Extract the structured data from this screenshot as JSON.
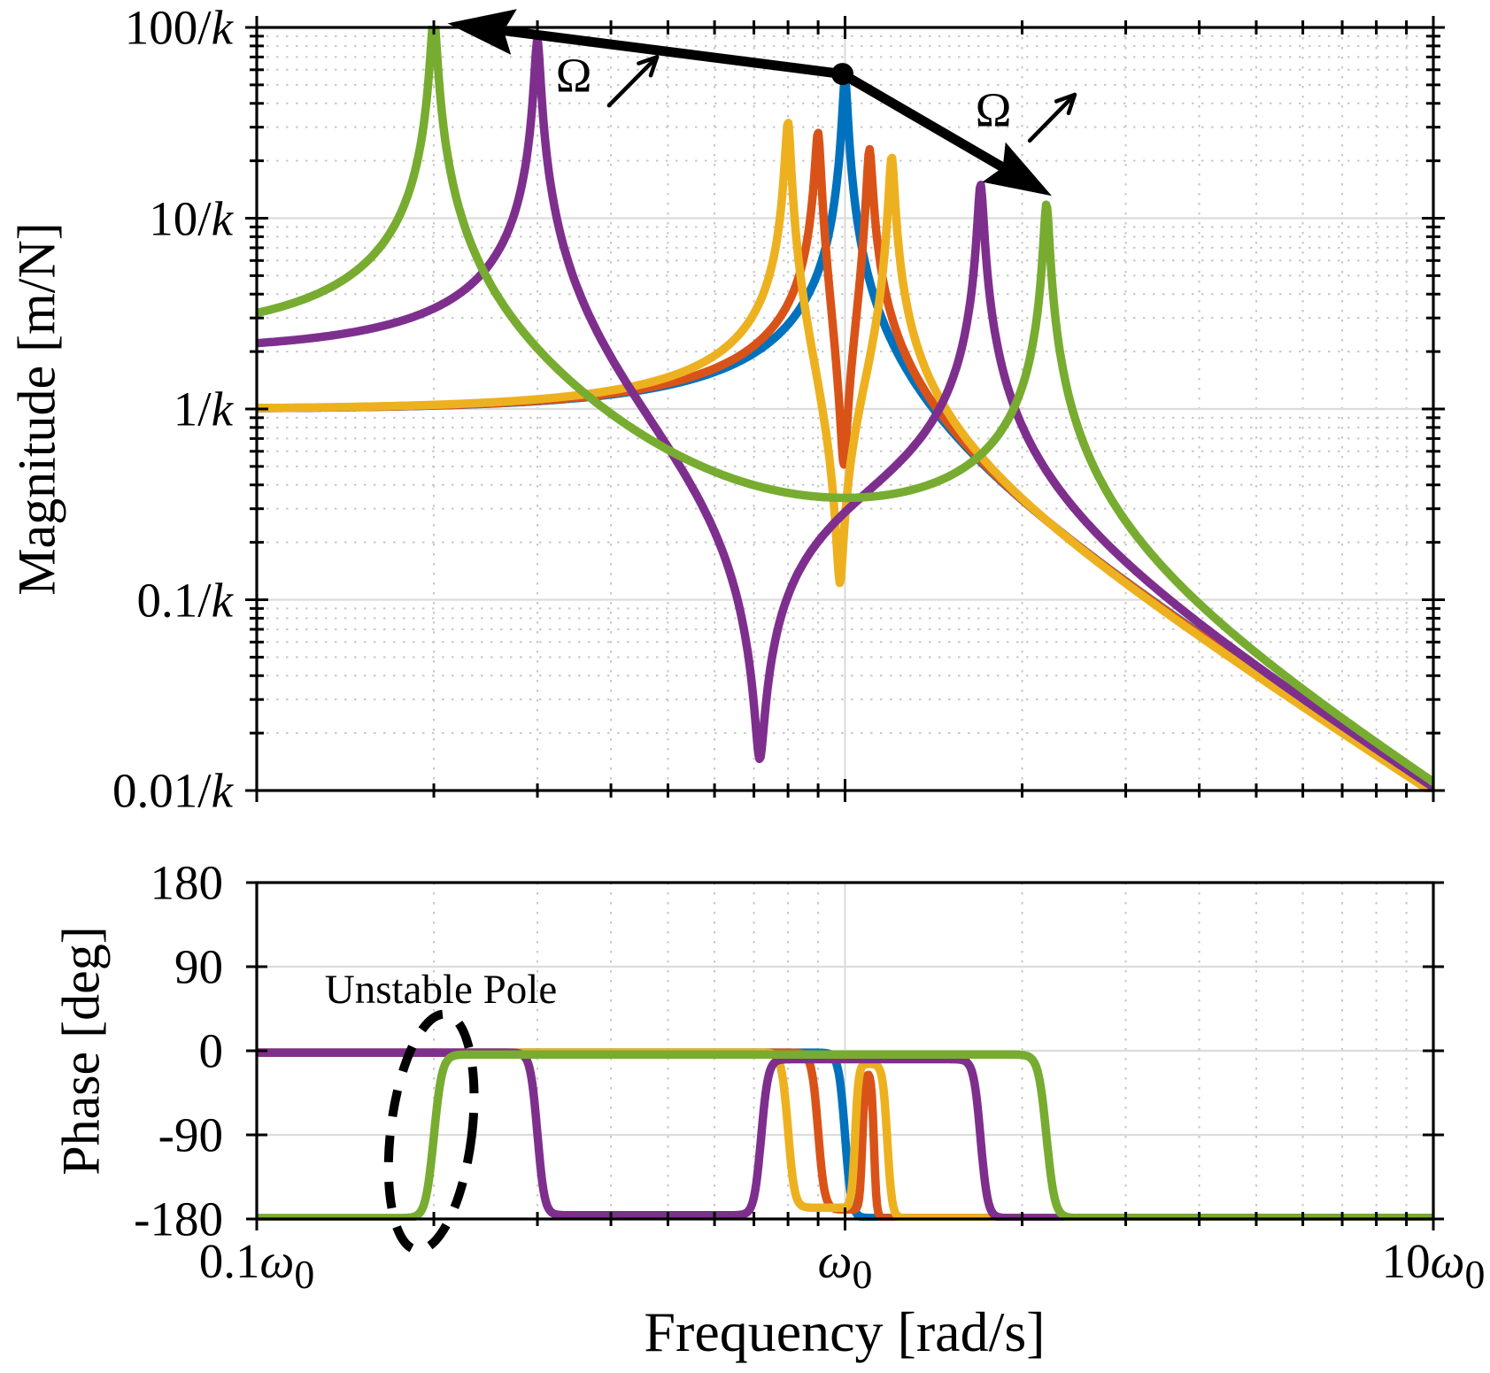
{
  "figure": {
    "kind": "bode-plot",
    "background": "#ffffff"
  },
  "chart_data": {
    "type": "line",
    "xlabel": "Frequency [rad/s]",
    "x_scale": "log",
    "x_range_omega0": [
      0.1,
      10
    ],
    "x_ticks": [
      {
        "label": "0.1ω0",
        "f": 0.1
      },
      {
        "label": "ω0",
        "f": 1
      },
      {
        "label": "10ω0",
        "f": 10
      }
    ],
    "panels": [
      {
        "id": "magnitude",
        "ylabel": "Magnitude [m/N]",
        "y_scale": "log",
        "y_range_over_k": [
          0.01,
          100
        ],
        "y_ticks": [
          {
            "label": "100/k",
            "v": 100
          },
          {
            "label": "10/k",
            "v": 10
          },
          {
            "label": "1/k",
            "v": 1
          },
          {
            "label": "0.1/k",
            "v": 0.1
          },
          {
            "label": "0.01/k",
            "v": 0.01
          }
        ]
      },
      {
        "id": "phase",
        "ylabel": "Phase [deg]",
        "y_scale": "linear",
        "y_range_deg": [
          -180,
          180
        ],
        "y_ticks": [
          {
            "label": "180",
            "v": 180
          },
          {
            "label": "90",
            "v": 90
          },
          {
            "label": "0",
            "v": 0
          },
          {
            "label": "-90",
            "v": -90
          },
          {
            "label": "-180",
            "v": -180
          }
        ]
      }
    ],
    "series": [
      {
        "id": "spin-speed-0",
        "color": "#0072BD",
        "magnitude_model": {
          "gain": 1.0,
          "poles": [
            {
              "f": 1.0,
              "zeta": 0.0093
            }
          ],
          "zeros": []
        },
        "features": {
          "peaks": [
            {
              "f": 1.0,
              "mag": 54
            }
          ],
          "notch": null,
          "left_end_mag": 1.0,
          "right_end_mag": 0.01
        },
        "phase_model": {
          "levels": [
            -2,
            -179
          ],
          "transitions": [
            1.0
          ],
          "widths": [
            0.011
          ]
        }
      },
      {
        "id": "spin-speed-1",
        "color": "#D95319",
        "magnitude_model": {
          "gain": 1.0,
          "poles": [
            {
              "f": 0.9,
              "zeta": 0.0098
            },
            {
              "f": 1.1,
              "zeta": 0.0098
            }
          ],
          "zeros": [
            {
              "f": 0.995,
              "zeta": 0.0104
            }
          ]
        },
        "features": {
          "peaks": [
            {
              "f": 0.9,
              "mag": 28
            },
            {
              "f": 1.1,
              "mag": 23
            }
          ],
          "notch": {
            "f": 0.995,
            "mag": 0.52
          },
          "left_end_mag": 1.0,
          "right_end_mag": 0.01
        },
        "phase_model": {
          "levels": [
            -2,
            -170,
            -22,
            -179
          ],
          "transitions": [
            0.9,
            1.07,
            1.12
          ],
          "widths": [
            0.011,
            0.0045,
            0.0045
          ]
        }
      },
      {
        "id": "spin-speed-2",
        "color": "#EDB120",
        "magnitude_model": {
          "gain": 1.0,
          "poles": [
            {
              "f": 0.8,
              "zeta": 0.0094
            },
            {
              "f": 1.2,
              "zeta": 0.0095
            }
          ],
          "zeros": [
            {
              "f": 0.98,
              "zeta": 0.0102
            }
          ]
        },
        "features": {
          "peaks": [
            {
              "f": 0.8,
              "mag": 32
            },
            {
              "f": 1.2,
              "mag": 21
            }
          ],
          "notch": {
            "f": 0.98,
            "mag": 0.12
          },
          "left_end_mag": 1.05,
          "right_end_mag": 0.01
        },
        "phase_model": {
          "levels": [
            -2,
            -168,
            -14,
            -179
          ],
          "transitions": [
            0.8,
            1.04,
            1.18
          ],
          "widths": [
            0.011,
            0.006,
            0.008
          ]
        }
      },
      {
        "id": "spin-speed-3",
        "color": "#7E2F8E",
        "magnitude_model": {
          "gain": 2.0,
          "poles": [
            {
              "f": 0.3,
              "zeta": 0.0099
            },
            {
              "f": 1.7,
              "zeta": 0.0099
            }
          ],
          "zeros": [
            {
              "f": 0.716,
              "zeta": 0.0141
            }
          ]
        },
        "features": {
          "peaks": [
            {
              "f": 0.3,
              "mag": 86
            },
            {
              "f": 1.7,
              "mag": 15
            }
          ],
          "notch": {
            "f": 0.716,
            "mag": 0.015
          },
          "left_end_mag": 2.2,
          "right_end_mag": 0.01
        },
        "phase_model": {
          "levels": [
            -2,
            -176,
            -9,
            -179
          ],
          "transitions": [
            0.3,
            0.72,
            1.7
          ],
          "widths": [
            0.012,
            0.012,
            0.012
          ]
        }
      },
      {
        "id": "spin-speed-4",
        "color": "#77AC30",
        "magnitude_model": {
          "gain": 2.37,
          "poles": [
            {
              "f": 0.2,
              "zeta": 0.0109
            },
            {
              "f": 2.2,
              "zeta": 0.0095
            }
          ],
          "zeros": [
            {
              "f": 0.66,
              "zeta": 0.8
            }
          ]
        },
        "features": {
          "peaks": [
            {
              "f": 0.2,
              "mag": 100
            },
            {
              "f": 2.2,
              "mag": 11.6
            }
          ],
          "notch": null,
          "left_end_mag": 3.2,
          "right_end_mag": 0.01
        },
        "phase_model": {
          "levels": [
            -179,
            -4,
            -179
          ],
          "transitions": [
            0.2,
            2.2
          ],
          "widths": [
            0.014,
            0.014
          ]
        }
      }
    ],
    "annotations": {
      "operating_point": {
        "panel": "magnitude",
        "f": 0.99,
        "mag": 57
      },
      "speed_arrows": [
        {
          "direction": "toward-lower-frequency",
          "from_f": 0.99,
          "from_mag": 57,
          "tip_f": 0.211,
          "tip_mag": 105
        },
        {
          "direction": "toward-higher-frequency",
          "from_f": 0.99,
          "from_mag": 57,
          "tip_f": 2.246,
          "tip_mag": 13.1
        }
      ],
      "omega_labels": [
        {
          "text": "Ω",
          "f": 0.346,
          "mag": 55,
          "arrow": {
            "f1": 0.397,
            "mag1": 39,
            "f2": 0.479,
            "mag2": 70
          }
        },
        {
          "text": "Ω",
          "f": 1.781,
          "mag": 36,
          "arrow": {
            "f1": 2.06,
            "mag1": 25.5,
            "f2": 2.457,
            "mag2": 44.4
          }
        }
      ],
      "unstable_pole": {
        "text": "Unstable Pole",
        "label_f": 0.205,
        "label_deg": 63,
        "ellipse": {
          "f": 0.198,
          "deg": -87,
          "rx_decades": 0.069,
          "ry_deg": 127,
          "rotate_deg": 7
        }
      }
    }
  },
  "styles": {
    "grid_major": "#dcdcdc",
    "grid_minor": "#c6c6c6",
    "axis_color": "#000000",
    "annotation_color": "#000000",
    "curve_width": 9.5
  }
}
